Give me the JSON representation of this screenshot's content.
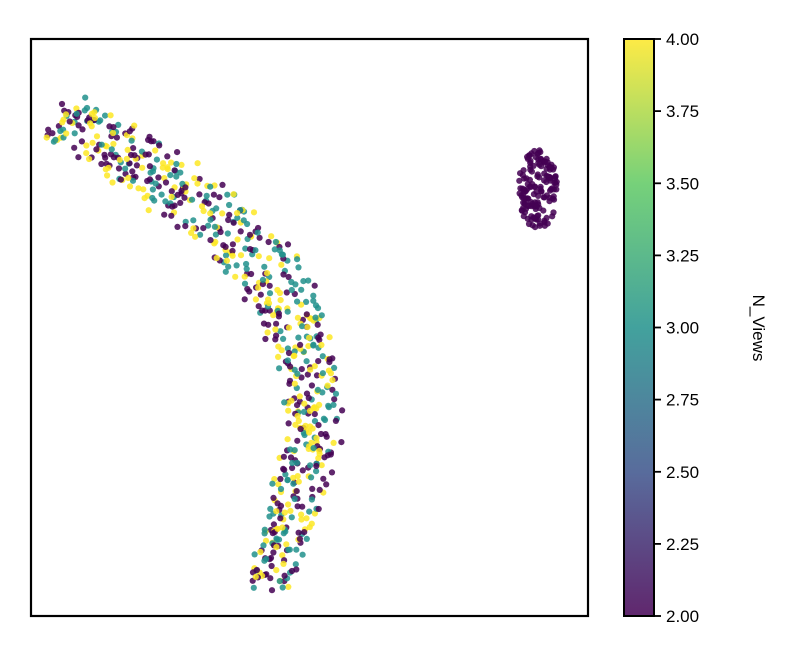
{
  "chart_data": {
    "type": "scatter",
    "title": "",
    "xlabel": "",
    "ylabel": "",
    "colorbar": {
      "label": "N_Views",
      "range": [
        2.0,
        4.0
      ],
      "ticks": [
        "2.00",
        "2.25",
        "2.50",
        "2.75",
        "3.00",
        "3.25",
        "3.50",
        "3.75",
        "4.00"
      ],
      "colormap": "viridis",
      "colors": [
        "#440154",
        "#3b528b",
        "#21918c",
        "#5ec962",
        "#fde725"
      ]
    },
    "axes": {
      "xticks": [],
      "yticks": [],
      "grid": false
    },
    "clusters": [
      {
        "description": "curved band",
        "value_levels": [
          2,
          3,
          4
        ],
        "centerline": [
          [
            0.05,
            0.87
          ],
          [
            0.17,
            0.8
          ],
          [
            0.32,
            0.7
          ],
          [
            0.45,
            0.57
          ],
          [
            0.5,
            0.44
          ],
          [
            0.51,
            0.33
          ],
          [
            0.47,
            0.2
          ],
          [
            0.43,
            0.05
          ]
        ],
        "approx_points": 700
      },
      {
        "description": "compact blob",
        "value_levels": [
          2
        ],
        "center": [
          0.91,
          0.74
        ],
        "radius": [
          0.035,
          0.07
        ],
        "approx_points": 150
      }
    ]
  }
}
